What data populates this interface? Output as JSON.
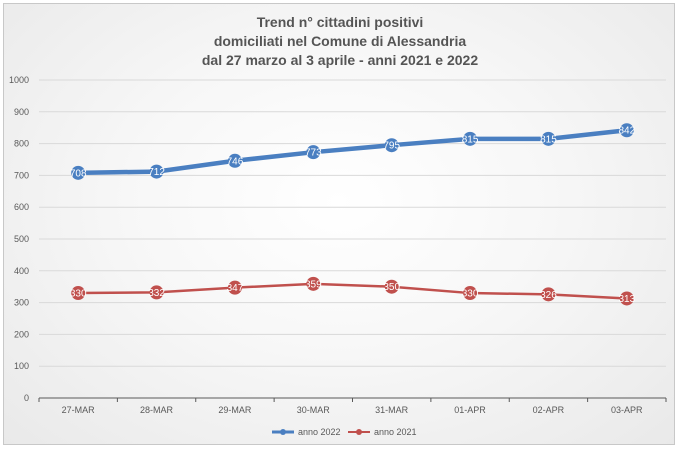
{
  "chart_data": {
    "type": "line",
    "title_lines": [
      "Trend n° cittadini positivi",
      "domiciliati nel Comune di Alessandria",
      "dal 27 marzo al 3 aprile - anni 2021 e 2022"
    ],
    "xlabel": "",
    "ylabel": "",
    "categories": [
      "27-MAR",
      "28-MAR",
      "29-MAR",
      "30-MAR",
      "31-MAR",
      "01-APR",
      "02-APR",
      "03-APR"
    ],
    "ylim": [
      0,
      1000
    ],
    "yticks": [
      0,
      100,
      200,
      300,
      400,
      500,
      600,
      700,
      800,
      900,
      1000
    ],
    "grid": true,
    "legend_position": "bottom",
    "series": [
      {
        "name": "anno 2022",
        "color": "#4a7fc1",
        "values": [
          708,
          712,
          746,
          773,
          795,
          815,
          815,
          842
        ],
        "labels": [
          "708",
          "712",
          "746",
          "773",
          "795",
          "815",
          "815",
          "842"
        ]
      },
      {
        "name": "anno 2021",
        "color": "#c0504d",
        "values": [
          330,
          332,
          347,
          359,
          350,
          330,
          326,
          313
        ],
        "labels": [
          "330",
          "332",
          "347",
          "359",
          "350",
          "330",
          "326",
          "313"
        ]
      }
    ]
  }
}
